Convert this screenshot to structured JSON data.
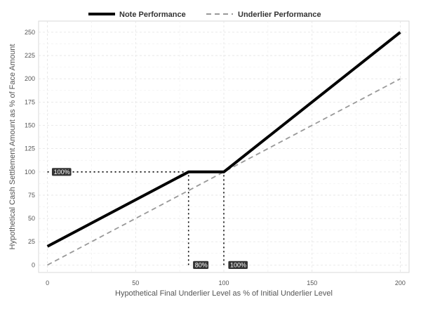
{
  "chart_data": {
    "type": "line",
    "xlabel": "Hypothetical Final Underlier Level as % of Initial Underlier Level",
    "ylabel": "Hypothetical Cash Settlement Amount as % of Face Amount",
    "xlim": [
      -5,
      205
    ],
    "ylim": [
      -8,
      262
    ],
    "x_ticks": [
      0,
      50,
      100,
      150,
      200
    ],
    "y_ticks": [
      0,
      25,
      50,
      75,
      100,
      125,
      150,
      175,
      200,
      225,
      250
    ],
    "grid": true,
    "legend_position": "top",
    "series": [
      {
        "name": "Note Performance",
        "style": "solid",
        "color": "#000000",
        "points": [
          [
            0,
            20
          ],
          [
            80,
            100
          ],
          [
            100,
            100
          ],
          [
            200,
            250
          ]
        ]
      },
      {
        "name": "Underlier Performance",
        "style": "dashed",
        "color": "#999999",
        "points": [
          [
            0,
            0
          ],
          [
            200,
            200
          ]
        ]
      }
    ],
    "reference_lines": [
      {
        "from": [
          0,
          100
        ],
        "to": [
          80,
          100
        ]
      },
      {
        "from": [
          80,
          0
        ],
        "to": [
          80,
          100
        ]
      },
      {
        "from": [
          100,
          0
        ],
        "to": [
          100,
          100
        ]
      }
    ],
    "annotations": [
      {
        "text": "100%",
        "x": 0,
        "y": 100
      },
      {
        "text": "80%",
        "x": 80,
        "y": 0
      },
      {
        "text": "100%",
        "x": 100,
        "y": 0
      }
    ]
  }
}
